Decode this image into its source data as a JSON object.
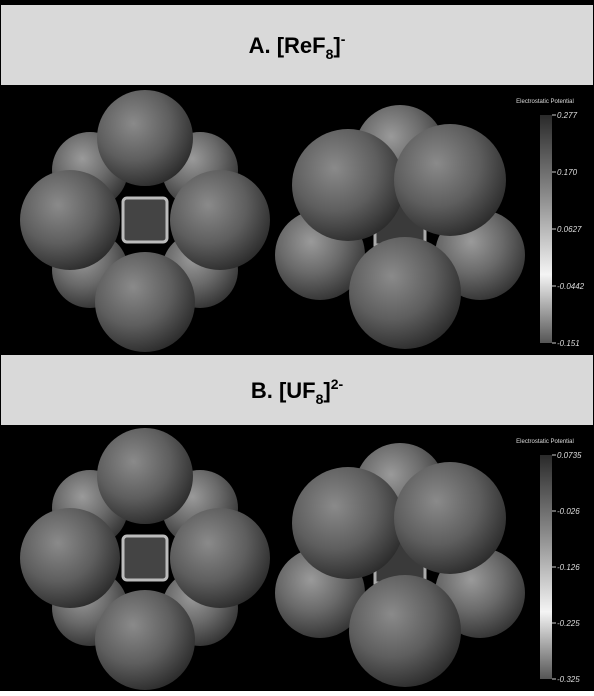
{
  "panels": [
    {
      "title": {
        "prefix": "A. [ReF",
        "sub": "8",
        "close": "]",
        "sup": "-"
      },
      "legend": {
        "title": "Electrostatic Potential",
        "ticks": [
          "0.277",
          "0.170",
          "0.0627",
          "-0.0442",
          "-0.151"
        ]
      }
    },
    {
      "title": {
        "prefix": "B. [UF",
        "sub": "8",
        "close": "]",
        "sup": "2-"
      },
      "legend": {
        "title": "Electrostatic Potential",
        "ticks": [
          "0.0735",
          "-0.026",
          "-0.126",
          "-0.225",
          "-0.325"
        ]
      }
    }
  ]
}
